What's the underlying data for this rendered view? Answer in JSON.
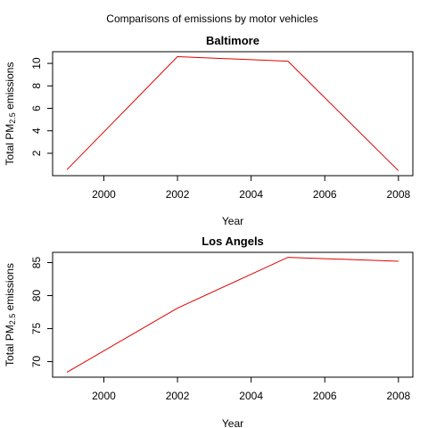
{
  "figure": {
    "title": "Comparisons of emissions by motor vehicles"
  },
  "chart_data": [
    {
      "type": "line",
      "title": "Baltimore",
      "xlabel": "Year",
      "ylabel": {
        "prefix": "Total PM",
        "subscript": "2.5",
        "suffix": " emissions"
      },
      "x": [
        1999,
        2002,
        2005,
        2008
      ],
      "series": [
        {
          "values": [
            0.55,
            10.6,
            10.2,
            0.45
          ]
        }
      ],
      "xlim": [
        1999,
        2008
      ],
      "ylim": [
        0.45,
        10.6
      ],
      "xticks": [
        2000,
        2002,
        2004,
        2006,
        2008
      ],
      "yticks": [
        2,
        4,
        6,
        8,
        10
      ],
      "grid": false,
      "line_color": "#e00000"
    },
    {
      "type": "line",
      "title": "Los Angels",
      "xlabel": "Year",
      "ylabel": {
        "prefix": "Total PM",
        "subscript": "2.5",
        "suffix": " emissions"
      },
      "x": [
        1999,
        2002,
        2005,
        2008
      ],
      "series": [
        {
          "values": [
            68.4,
            78.1,
            85.8,
            85.2
          ]
        }
      ],
      "xlim": [
        1999,
        2008
      ],
      "ylim": [
        68.4,
        85.8
      ],
      "xticks": [
        2000,
        2002,
        2004,
        2006,
        2008
      ],
      "yticks": [
        70,
        75,
        80,
        85
      ],
      "grid": false,
      "line_color": "#e00000"
    }
  ]
}
